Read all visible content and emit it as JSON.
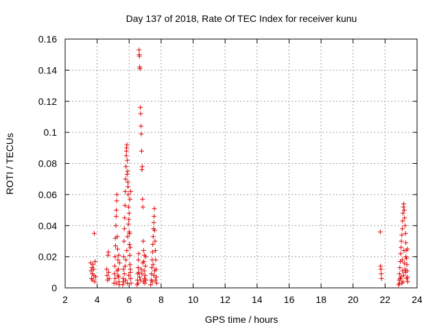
{
  "chart_data": {
    "type": "scatter",
    "title": "Day 137 of 2018, Rate Of TEC Index for receiver kunu",
    "xlabel": "GPS time / hours",
    "ylabel": "ROTI / TECUs",
    "xlim": [
      2,
      24
    ],
    "ylim": [
      0,
      0.16
    ],
    "xticks": [
      "2",
      "4",
      "6",
      "8",
      "10",
      "12",
      "14",
      "16",
      "18",
      "20",
      "22",
      "24"
    ],
    "yticks": [
      "0",
      "0.02",
      "0.04",
      "0.06",
      "0.08",
      "0.1",
      "0.12",
      "0.14",
      "0.16"
    ],
    "grid": true,
    "legend": "none",
    "marker": "plus",
    "color": "#e00000",
    "series": [
      {
        "points": [
          [
            3.6,
            0.016
          ],
          [
            3.62,
            0.011
          ],
          [
            3.65,
            0.006
          ],
          [
            3.68,
            0.013
          ],
          [
            3.7,
            0.009
          ],
          [
            3.72,
            0.005
          ],
          [
            3.75,
            0.015
          ],
          [
            3.78,
            0.012
          ],
          [
            3.8,
            0.008
          ],
          [
            3.82,
            0.035
          ],
          [
            3.85,
            0.004
          ],
          [
            3.87,
            0.017
          ],
          [
            3.9,
            0.007
          ],
          [
            4.6,
            0.012
          ],
          [
            4.62,
            0.008
          ],
          [
            4.65,
            0.005
          ],
          [
            4.68,
            0.021
          ],
          [
            4.7,
            0.023
          ],
          [
            4.72,
            0.01
          ],
          [
            4.75,
            0.006
          ],
          [
            5.05,
            0.003
          ],
          [
            5.08,
            0.009
          ],
          [
            5.1,
            0.014
          ],
          [
            5.12,
            0.02
          ],
          [
            5.15,
            0.027
          ],
          [
            5.17,
            0.04
          ],
          [
            5.19,
            0.046
          ],
          [
            5.2,
            0.05
          ],
          [
            5.22,
            0.056
          ],
          [
            5.24,
            0.06
          ],
          [
            5.26,
            0.033
          ],
          [
            5.28,
            0.025
          ],
          [
            5.3,
            0.018
          ],
          [
            5.32,
            0.012
          ],
          [
            5.34,
            0.007
          ],
          [
            5.36,
            0.004
          ],
          [
            5.38,
            0.002
          ],
          [
            5.4,
            0.016
          ],
          [
            5.12,
            0.006
          ],
          [
            5.18,
            0.003
          ],
          [
            5.25,
            0.011
          ],
          [
            5.3,
            0.008
          ],
          [
            5.35,
            0.021
          ],
          [
            5.14,
            0.032
          ],
          [
            5.6,
            0.002
          ],
          [
            5.62,
            0.006
          ],
          [
            5.64,
            0.012
          ],
          [
            5.66,
            0.02
          ],
          [
            5.68,
            0.03
          ],
          [
            5.7,
            0.038
          ],
          [
            5.72,
            0.045
          ],
          [
            5.74,
            0.053
          ],
          [
            5.76,
            0.062
          ],
          [
            5.78,
            0.07
          ],
          [
            5.8,
            0.078
          ],
          [
            5.82,
            0.085
          ],
          [
            5.84,
            0.09
          ],
          [
            5.86,
            0.092
          ],
          [
            5.88,
            0.082
          ],
          [
            5.9,
            0.075
          ],
          [
            5.92,
            0.068
          ],
          [
            5.94,
            0.06
          ],
          [
            5.96,
            0.052
          ],
          [
            5.98,
            0.044
          ],
          [
            6.0,
            0.036
          ],
          [
            6.02,
            0.028
          ],
          [
            6.04,
            0.021
          ],
          [
            6.06,
            0.015
          ],
          [
            6.08,
            0.01
          ],
          [
            6.1,
            0.006
          ],
          [
            6.12,
            0.003
          ],
          [
            5.65,
            0.004
          ],
          [
            5.7,
            0.009
          ],
          [
            5.75,
            0.014
          ],
          [
            5.8,
            0.018
          ],
          [
            5.85,
            0.024
          ],
          [
            5.9,
            0.033
          ],
          [
            5.95,
            0.041
          ],
          [
            6.0,
            0.048
          ],
          [
            6.05,
            0.057
          ],
          [
            6.1,
            0.062
          ],
          [
            5.78,
            0.005
          ],
          [
            5.88,
            0.003
          ],
          [
            5.98,
            0.008
          ],
          [
            6.08,
            0.012
          ],
          [
            5.83,
            0.088
          ],
          [
            5.87,
            0.073
          ],
          [
            5.93,
            0.065
          ],
          [
            6.03,
            0.035
          ],
          [
            6.07,
            0.026
          ],
          [
            6.5,
            0.002
          ],
          [
            6.52,
            0.005
          ],
          [
            6.54,
            0.009
          ],
          [
            6.56,
            0.013
          ],
          [
            6.58,
            0.018
          ],
          [
            6.6,
            0.022
          ],
          [
            6.62,
            0.153
          ],
          [
            6.63,
            0.15
          ],
          [
            6.64,
            0.149
          ],
          [
            6.66,
            0.142
          ],
          [
            6.68,
            0.141
          ],
          [
            6.7,
            0.116
          ],
          [
            6.72,
            0.112
          ],
          [
            6.74,
            0.104
          ],
          [
            6.76,
            0.099
          ],
          [
            6.78,
            0.088
          ],
          [
            6.8,
            0.076
          ],
          [
            6.82,
            0.078
          ],
          [
            6.84,
            0.057
          ],
          [
            6.86,
            0.052
          ],
          [
            6.88,
            0.03
          ],
          [
            6.9,
            0.024
          ],
          [
            6.92,
            0.017
          ],
          [
            6.94,
            0.011
          ],
          [
            6.96,
            0.006
          ],
          [
            6.98,
            0.003
          ],
          [
            7.0,
            0.008
          ],
          [
            7.02,
            0.014
          ],
          [
            7.04,
            0.02
          ],
          [
            6.55,
            0.003
          ],
          [
            6.65,
            0.007
          ],
          [
            6.75,
            0.012
          ],
          [
            6.85,
            0.016
          ],
          [
            6.95,
            0.021
          ],
          [
            7.05,
            0.005
          ],
          [
            6.6,
            0.01
          ],
          [
            6.7,
            0.005
          ],
          [
            6.8,
            0.009
          ],
          [
            6.9,
            0.004
          ],
          [
            7.35,
            0.002
          ],
          [
            7.38,
            0.005
          ],
          [
            7.4,
            0.009
          ],
          [
            7.42,
            0.013
          ],
          [
            7.44,
            0.018
          ],
          [
            7.46,
            0.023
          ],
          [
            7.48,
            0.028
          ],
          [
            7.5,
            0.033
          ],
          [
            7.52,
            0.038
          ],
          [
            7.54,
            0.042
          ],
          [
            7.56,
            0.046
          ],
          [
            7.58,
            0.051
          ],
          [
            7.6,
            0.037
          ],
          [
            7.62,
            0.03
          ],
          [
            7.64,
            0.024
          ],
          [
            7.66,
            0.018
          ],
          [
            7.68,
            0.012
          ],
          [
            7.7,
            0.007
          ],
          [
            7.72,
            0.003
          ],
          [
            7.45,
            0.004
          ],
          [
            7.55,
            0.008
          ],
          [
            7.65,
            0.005
          ],
          [
            7.5,
            0.015
          ],
          [
            7.6,
            0.011
          ],
          [
            21.7,
            0.036
          ],
          [
            21.72,
            0.014
          ],
          [
            21.74,
            0.012
          ],
          [
            21.76,
            0.009
          ],
          [
            21.78,
            0.006
          ],
          [
            22.85,
            0.002
          ],
          [
            22.88,
            0.005
          ],
          [
            22.9,
            0.009
          ],
          [
            22.92,
            0.013
          ],
          [
            22.95,
            0.017
          ],
          [
            22.98,
            0.022
          ],
          [
            23.0,
            0.026
          ],
          [
            23.02,
            0.03
          ],
          [
            23.05,
            0.034
          ],
          [
            23.08,
            0.038
          ],
          [
            23.1,
            0.043
          ],
          [
            23.12,
            0.048
          ],
          [
            23.15,
            0.052
          ],
          [
            23.17,
            0.054
          ],
          [
            23.2,
            0.05
          ],
          [
            23.22,
            0.045
          ],
          [
            23.25,
            0.04
          ],
          [
            23.28,
            0.035
          ],
          [
            23.3,
            0.029
          ],
          [
            23.32,
            0.024
          ],
          [
            23.34,
            0.019
          ],
          [
            23.36,
            0.015
          ],
          [
            23.38,
            0.011
          ],
          [
            23.4,
            0.007
          ],
          [
            23.42,
            0.004
          ],
          [
            22.9,
            0.003
          ],
          [
            23.0,
            0.007
          ],
          [
            23.1,
            0.011
          ],
          [
            23.2,
            0.016
          ],
          [
            23.3,
            0.02
          ],
          [
            23.4,
            0.025
          ],
          [
            22.95,
            0.006
          ],
          [
            23.05,
            0.003
          ],
          [
            23.15,
            0.008
          ],
          [
            23.25,
            0.012
          ],
          [
            23.35,
            0.006
          ],
          [
            23.07,
            0.018
          ],
          [
            23.18,
            0.024
          ],
          [
            23.28,
            0.01
          ],
          [
            23.12,
            0.004
          ]
        ]
      }
    ]
  }
}
